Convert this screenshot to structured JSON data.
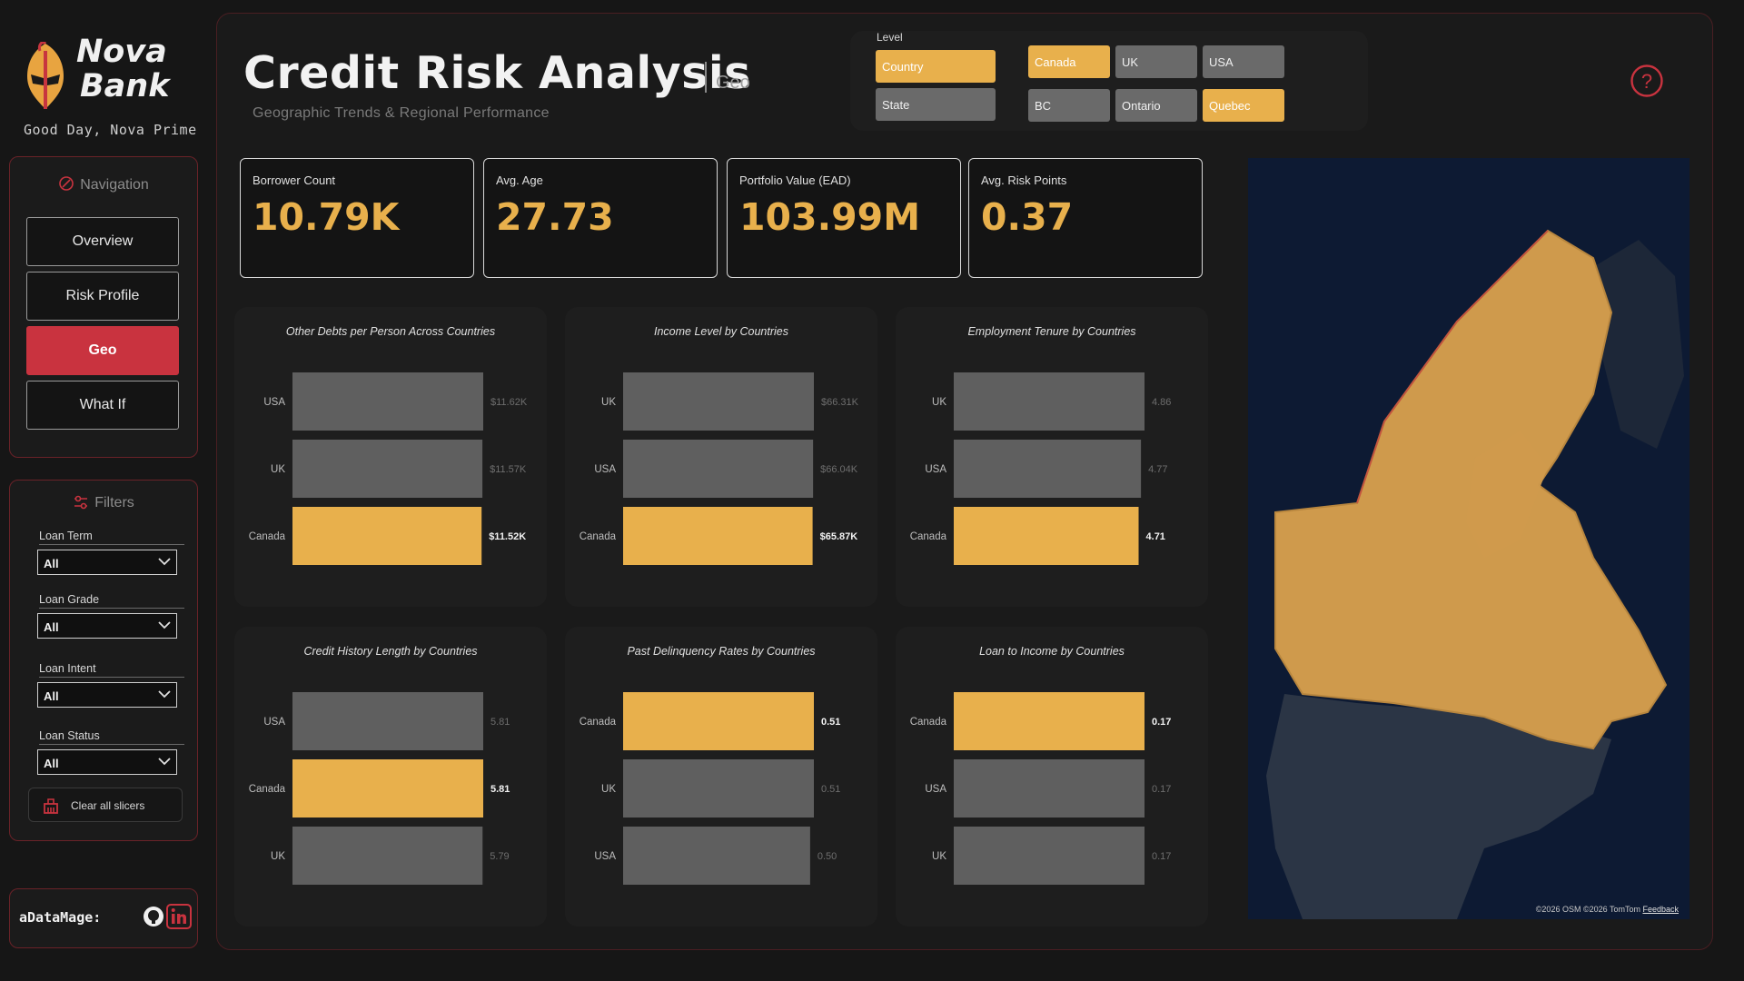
{
  "brand": {
    "line1": "Nova",
    "line2": "Bank",
    "greeting": "Good Day, Nova Prime"
  },
  "navigation": {
    "heading": "Navigation",
    "items": [
      {
        "label": "Overview",
        "active": false
      },
      {
        "label": "Risk Profile",
        "active": false
      },
      {
        "label": "Geo",
        "active": true
      },
      {
        "label": "What If",
        "active": false
      }
    ]
  },
  "filters": {
    "heading": "Filters",
    "items": [
      {
        "label": "Loan Term",
        "value": "All"
      },
      {
        "label": "Loan Grade",
        "value": "All"
      },
      {
        "label": "Loan Intent",
        "value": "All"
      },
      {
        "label": "Loan Status",
        "value": "All"
      }
    ],
    "clear_label": "Clear all slicers"
  },
  "credit": {
    "handle": "aDataMage:"
  },
  "header": {
    "title": "Credit Risk Analysis",
    "page": "Geo",
    "subtitle": "Geographic Trends & Regional Performance"
  },
  "level": {
    "label": "Level",
    "options": [
      {
        "label": "Country",
        "selected": true
      },
      {
        "label": "State",
        "selected": false
      }
    ],
    "countries": [
      {
        "label": "Canada",
        "selected": true
      },
      {
        "label": "UK",
        "selected": false
      },
      {
        "label": "USA",
        "selected": false
      }
    ],
    "states": [
      {
        "label": "BC",
        "selected": false
      },
      {
        "label": "Ontario",
        "selected": false
      },
      {
        "label": "Quebec",
        "selected": true
      }
    ]
  },
  "kpis": [
    {
      "label": "Borrower Count",
      "value": "10.79K"
    },
    {
      "label": "Avg. Age",
      "value": "27.73"
    },
    {
      "label": "Portfolio Value (EAD)",
      "value": "103.99M"
    },
    {
      "label": "Avg. Risk Points",
      "value": "0.37"
    }
  ],
  "colors": {
    "accent": "#e8b04c",
    "bar_default": "#5f5f5f",
    "nav_active": "#c9333f",
    "map_water": "#0d1a33",
    "map_land": "#cf9a4c"
  },
  "chart_data": [
    {
      "type": "bar",
      "orientation": "horizontal",
      "title": "Other Debts per Person Across Countries",
      "categories": [
        "USA",
        "UK",
        "Canada"
      ],
      "values": [
        11620,
        11570,
        11520
      ],
      "labels": [
        "$11.62K",
        "$11.57K",
        "$11.52K"
      ],
      "highlight": "Canada"
    },
    {
      "type": "bar",
      "orientation": "horizontal",
      "title": "Income Level by Countries",
      "categories": [
        "UK",
        "USA",
        "Canada"
      ],
      "values": [
        66310,
        66040,
        65870
      ],
      "labels": [
        "$66.31K",
        "$66.04K",
        "$65.87K"
      ],
      "highlight": "Canada"
    },
    {
      "type": "bar",
      "orientation": "horizontal",
      "title": "Employment Tenure by Countries",
      "categories": [
        "UK",
        "USA",
        "Canada"
      ],
      "values": [
        4.86,
        4.77,
        4.71
      ],
      "labels": [
        "4.86",
        "4.77",
        "4.71"
      ],
      "highlight": "Canada"
    },
    {
      "type": "bar",
      "orientation": "horizontal",
      "title": "Credit History Length by Countries",
      "categories": [
        "USA",
        "Canada",
        "UK"
      ],
      "values": [
        5.81,
        5.81,
        5.79
      ],
      "labels": [
        "5.81",
        "5.81",
        "5.79"
      ],
      "highlight": "Canada"
    },
    {
      "type": "bar",
      "orientation": "horizontal",
      "title": "Past Delinquency Rates by Countries",
      "categories": [
        "Canada",
        "UK",
        "USA"
      ],
      "values": [
        0.51,
        0.51,
        0.5
      ],
      "labels": [
        "0.51",
        "0.51",
        "0.50"
      ],
      "highlight": "Canada"
    },
    {
      "type": "bar",
      "orientation": "horizontal",
      "title": "Loan to Income by Countries",
      "categories": [
        "Canada",
        "USA",
        "UK"
      ],
      "values": [
        0.17,
        0.17,
        0.17
      ],
      "labels": [
        "0.17",
        "0.17",
        "0.17"
      ],
      "highlight": "Canada"
    }
  ],
  "map": {
    "highlighted_region": "Canada",
    "attribution": "©2026 OSM ©2026 TomTom",
    "feedback_label": "Feedback"
  }
}
